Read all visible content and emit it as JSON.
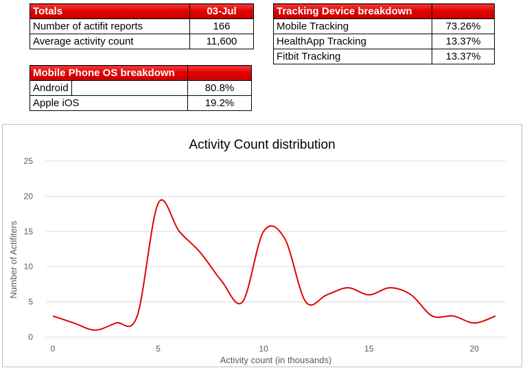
{
  "totals": {
    "header_label": "Totals",
    "header_date": "03-Jul",
    "rows": [
      {
        "label": "Number of actifit reports",
        "value": "166"
      },
      {
        "label": "Average activity count",
        "value": "11,600"
      }
    ]
  },
  "device_breakdown": {
    "header_label": "Tracking Device breakdown",
    "rows": [
      {
        "label": "Mobile Tracking",
        "value": "73.26%"
      },
      {
        "label": "HealthApp Tracking",
        "value": "13.37%"
      },
      {
        "label": "Fitbit Tracking",
        "value": "13.37%"
      }
    ]
  },
  "os_breakdown": {
    "header_label": "Mobile Phone OS breakdown",
    "rows": [
      {
        "label": "Android",
        "value": "80.8%"
      },
      {
        "label": "Apple iOS",
        "value": "19.2%"
      }
    ]
  },
  "colors": {
    "header_red": "#e40000",
    "line_red": "#e00000",
    "grid": "#d9d9d9"
  },
  "chart_data": {
    "type": "line",
    "title": "Activity Count distribution",
    "xlabel": "Activity count (in thousands)",
    "ylabel": "Number of Actifiters",
    "xlim": [
      0,
      21
    ],
    "ylim": [
      0,
      25
    ],
    "x_ticks": [
      0,
      5,
      10,
      15,
      20
    ],
    "y_ticks": [
      0,
      5,
      10,
      15,
      20,
      25
    ],
    "grid": "horizontal",
    "smooth": true,
    "series": [
      {
        "x": [
          0,
          1,
          2,
          3,
          4,
          5,
          6,
          7,
          8,
          9,
          10,
          11,
          12,
          13,
          14,
          15,
          16,
          17,
          18,
          19,
          20,
          21
        ],
        "values": [
          3,
          2,
          1,
          2,
          3,
          19,
          15,
          12,
          8,
          5,
          15,
          14,
          5,
          6,
          7,
          6,
          7,
          6,
          3,
          3,
          2,
          3
        ]
      }
    ]
  }
}
